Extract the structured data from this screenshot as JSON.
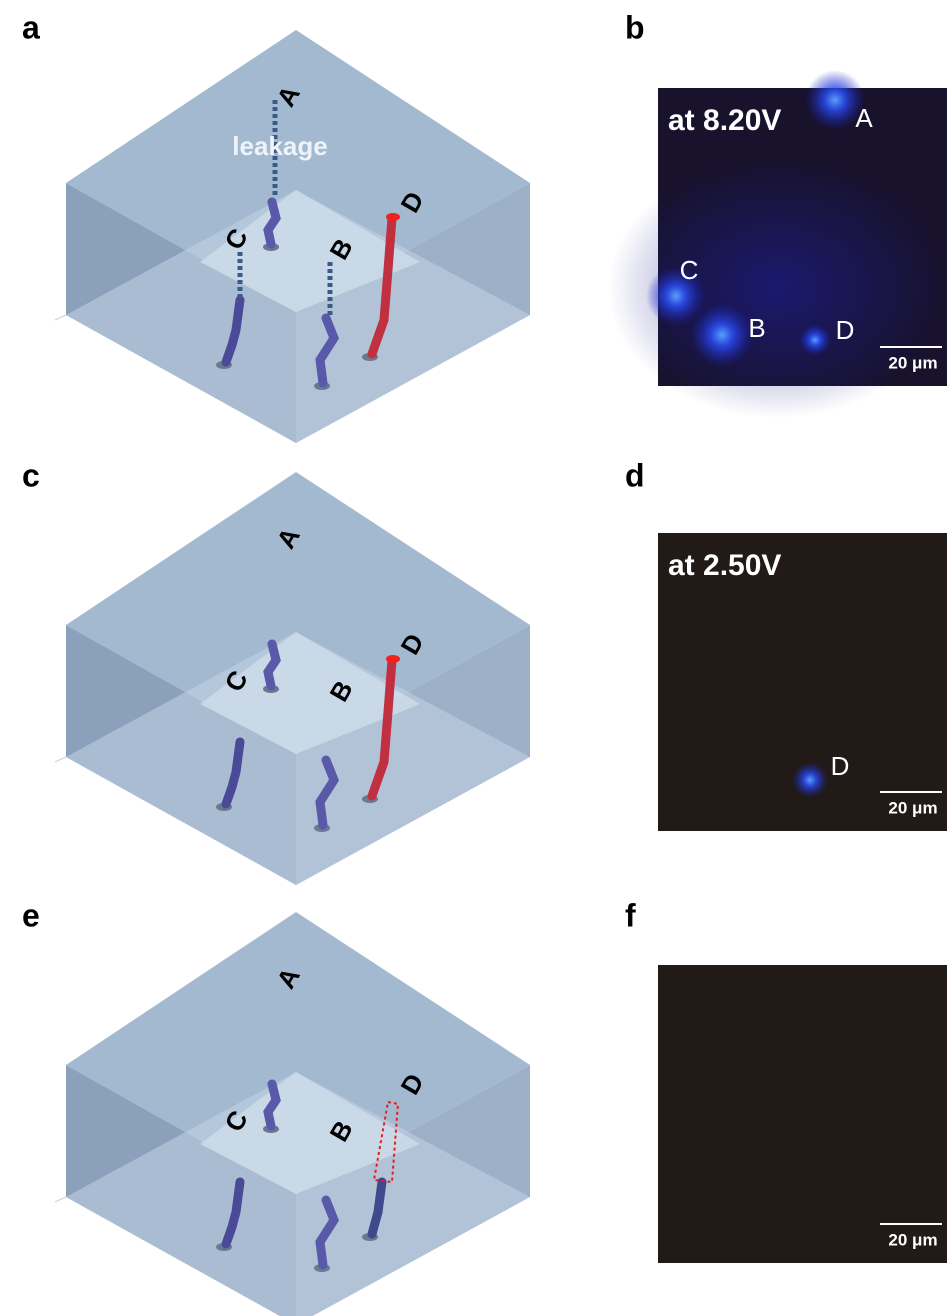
{
  "panels": [
    {
      "label": "a",
      "note": "leakage",
      "wire_labels": [
        "A",
        "B",
        "C",
        "D"
      ]
    },
    {
      "label": "b",
      "voltage": "at 8.20V",
      "spot_labels": [
        "A",
        "C",
        "B",
        "D"
      ],
      "scale_bar": "20 μm"
    },
    {
      "label": "c",
      "wire_labels": [
        "A",
        "B",
        "C",
        "D"
      ]
    },
    {
      "label": "d",
      "voltage": "at 2.50V",
      "spot_labels": [
        "D"
      ],
      "scale_bar": "20 μm"
    },
    {
      "label": "e",
      "wire_labels": [
        "A",
        "B",
        "C",
        "D"
      ]
    },
    {
      "label": "f",
      "scale_bar": "20 μm"
    }
  ]
}
